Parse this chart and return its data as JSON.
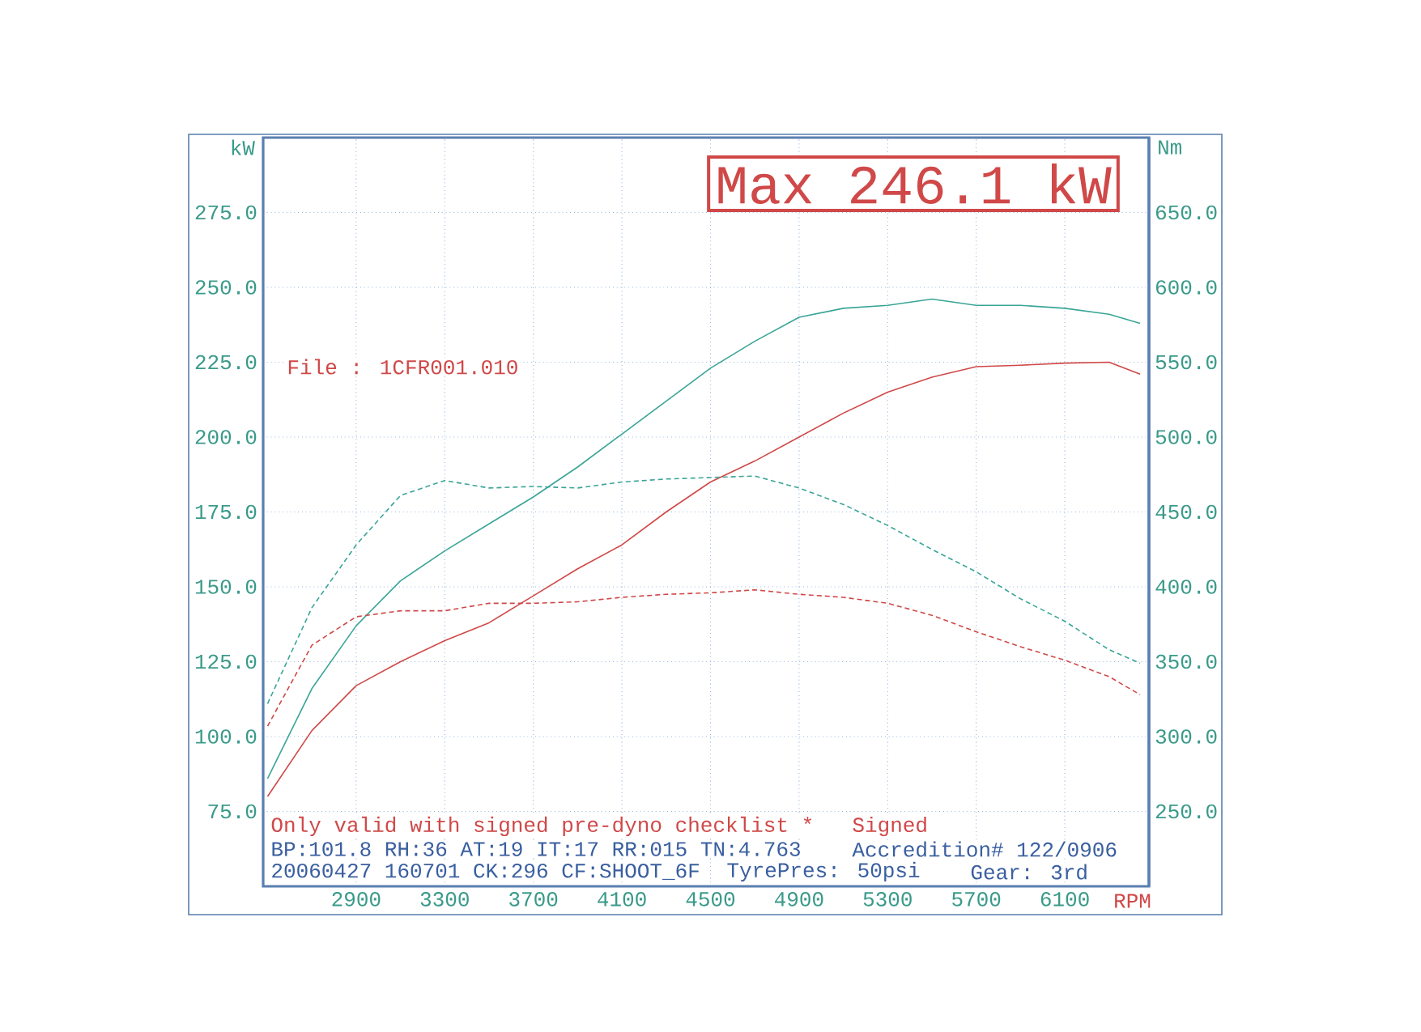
{
  "chart_data": {
    "type": "line",
    "xlabel": "RPM",
    "ylabel": "kW",
    "y2label": "Nm",
    "x": [
      2500,
      2700,
      2900,
      3100,
      3300,
      3500,
      3700,
      3900,
      4100,
      4300,
      4500,
      4700,
      4900,
      5100,
      5300,
      5500,
      5700,
      5900,
      6100,
      6300,
      6440
    ],
    "series": [
      {
        "color": "#d04848",
        "line_style": "solid",
        "values": [
          80,
          102,
          117,
          125,
          132,
          138,
          147,
          156,
          164,
          175,
          185,
          192,
          200,
          208,
          215,
          220,
          223.5,
          224,
          224.7,
          225,
          221
        ]
      },
      {
        "color": "#3aa597",
        "line_style": "solid",
        "values": [
          86,
          116,
          137,
          152,
          162,
          171,
          180,
          190,
          201,
          212,
          223,
          232,
          240,
          243,
          244,
          246.1,
          244,
          244,
          243,
          241,
          238
        ]
      },
      {
        "color": "#d04848",
        "line_style": "dashed",
        "axis": "y2",
        "values": [
          307,
          361,
          380,
          384,
          384,
          389,
          389,
          390,
          393,
          395,
          396,
          398,
          395,
          393,
          389,
          381,
          370,
          360,
          351,
          340,
          328
        ]
      },
      {
        "color": "#3aa597",
        "line_style": "dashed",
        "axis": "y2",
        "values": [
          322,
          386,
          428,
          461,
          471,
          466,
          467,
          466,
          470,
          472,
          473,
          474,
          466,
          455,
          441,
          425,
          410,
          392,
          377,
          358,
          349
        ]
      }
    ],
    "xlim": [
      2480,
      6480
    ],
    "ylim": [
      50,
      300
    ],
    "y2lim": [
      200,
      700
    ],
    "xticks": [
      2900,
      3300,
      3700,
      4100,
      4500,
      4900,
      5300,
      5700,
      6100
    ],
    "yticks": [
      {
        "value": 75,
        "label": "75.0"
      },
      {
        "value": 100,
        "label": "100.0"
      },
      {
        "value": 125,
        "label": "125.0"
      },
      {
        "value": 150,
        "label": "150.0"
      },
      {
        "value": 175,
        "label": "175.0"
      },
      {
        "value": 200,
        "label": "200.0"
      },
      {
        "value": 225,
        "label": "225.0"
      },
      {
        "value": 250,
        "label": "250.0"
      },
      {
        "value": 275,
        "label": "275.0"
      }
    ],
    "y2ticks": [
      {
        "value": 250,
        "label": "250.0"
      },
      {
        "value": 300,
        "label": "300.0"
      },
      {
        "value": 350,
        "label": "350.0"
      },
      {
        "value": 400,
        "label": "400.0"
      },
      {
        "value": 450,
        "label": "450.0"
      },
      {
        "value": 500,
        "label": "500.0"
      },
      {
        "value": 550,
        "label": "550.0"
      },
      {
        "value": 600,
        "label": "600.0"
      },
      {
        "value": 650,
        "label": "650.0"
      }
    ],
    "grid": true,
    "marker": "none",
    "annotations": [
      "Max 246.1 kW",
      "File : 1CFR001.010",
      "Only valid with signed pre-dyno checklist *",
      "Signed",
      "BP:101.8 RH:36 AT:19 IT:17 RR:015 TN:4.763",
      "Accredition# 122/0906",
      "20060427 160701 CK:296 CF:SHOOT_6F",
      "TyrePres: 50psi",
      "Gear: 3rd"
    ]
  }
}
